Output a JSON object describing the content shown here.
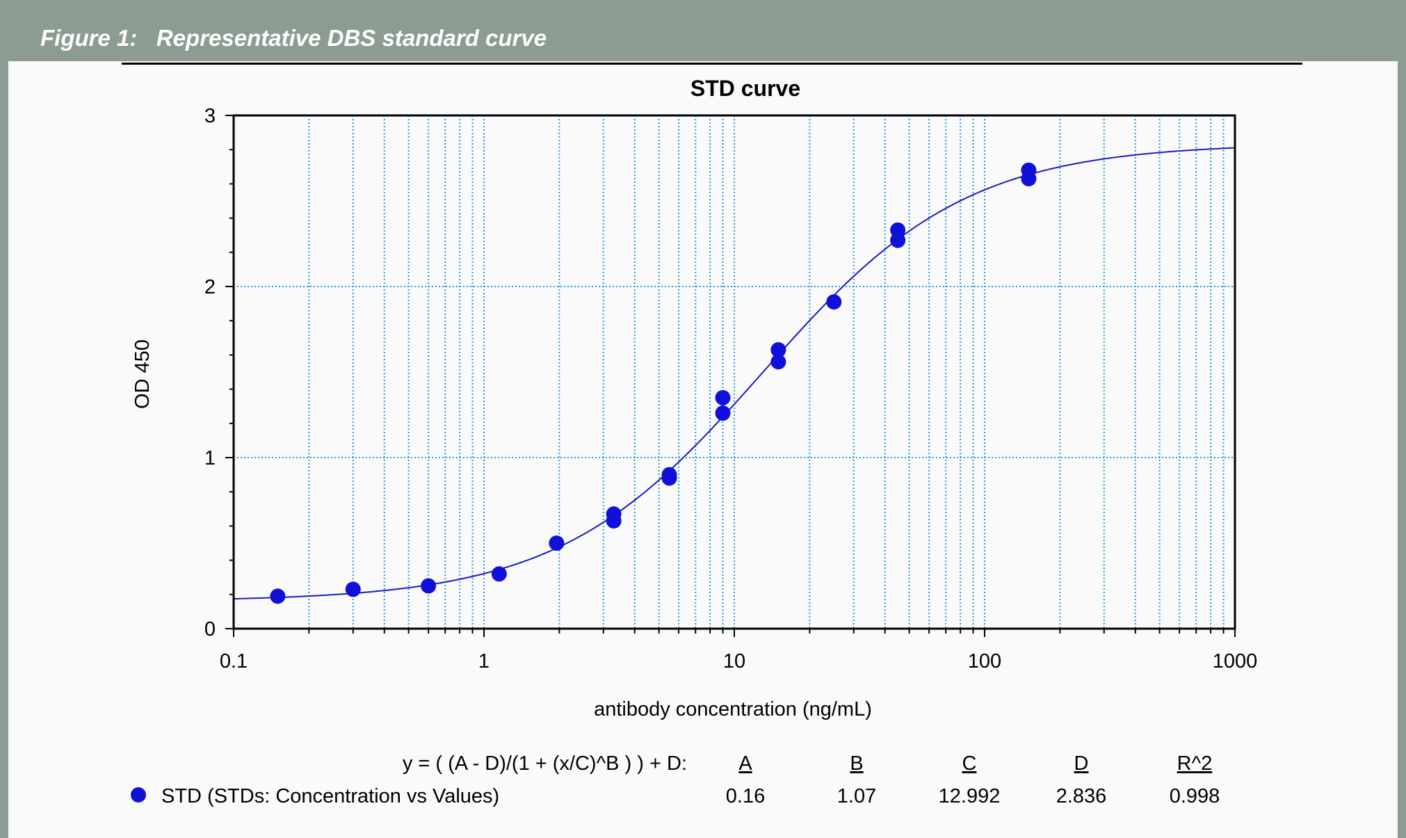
{
  "figure": {
    "caption": "Figure 1:   Representative DBS standard curve"
  },
  "colors": {
    "frame": "#8c9c92",
    "panel": "#fafafa",
    "grid": "#1aa0d8",
    "series": "#1010d8",
    "curve": "#1a1ac0"
  },
  "chart_data": {
    "type": "scatter",
    "title": "STD curve",
    "xlabel": "antibody concentration (ng/mL)",
    "ylabel": "OD 450",
    "x_scale": "log",
    "xlim": [
      0.1,
      1000
    ],
    "ylim": [
      0,
      3
    ],
    "x_ticks": [
      {
        "value": 0.1,
        "label": "0.1"
      },
      {
        "value": 1,
        "label": "1"
      },
      {
        "value": 10,
        "label": "10"
      },
      {
        "value": 100,
        "label": "100"
      },
      {
        "value": 1000,
        "label": "1000"
      }
    ],
    "y_ticks": [
      {
        "value": 0,
        "label": "0"
      },
      {
        "value": 1,
        "label": "1"
      },
      {
        "value": 2,
        "label": "2"
      },
      {
        "value": 3,
        "label": "3"
      }
    ],
    "grid": true,
    "series": [
      {
        "name": "STD (STDs: Concentration vs Values)",
        "points": [
          {
            "x": 0.15,
            "y": 0.19
          },
          {
            "x": 0.3,
            "y": 0.23
          },
          {
            "x": 0.6,
            "y": 0.25
          },
          {
            "x": 1.15,
            "y": 0.32
          },
          {
            "x": 1.95,
            "y": 0.5
          },
          {
            "x": 3.3,
            "y": 0.63
          },
          {
            "x": 3.3,
            "y": 0.67
          },
          {
            "x": 5.5,
            "y": 0.88
          },
          {
            "x": 5.5,
            "y": 0.9
          },
          {
            "x": 9.0,
            "y": 1.26
          },
          {
            "x": 9.0,
            "y": 1.35
          },
          {
            "x": 15,
            "y": 1.56
          },
          {
            "x": 15,
            "y": 1.63
          },
          {
            "x": 25,
            "y": 1.91
          },
          {
            "x": 45,
            "y": 2.27
          },
          {
            "x": 45,
            "y": 2.33
          },
          {
            "x": 150,
            "y": 2.63
          },
          {
            "x": 150,
            "y": 2.68
          }
        ]
      }
    ],
    "fit": {
      "equation": "y = ( (A - D)/(1 + (x/C)^B ) ) + D:",
      "params": [
        {
          "name": "A",
          "value": 0.16,
          "text": "0.16"
        },
        {
          "name": "B",
          "value": 1.07,
          "text": "1.07"
        },
        {
          "name": "C",
          "value": 12.992,
          "text": "12.992"
        },
        {
          "name": "D",
          "value": 2.836,
          "text": "2.836"
        },
        {
          "name": "R^2",
          "value": 0.998,
          "text": "0.998"
        }
      ]
    },
    "legend_position": "bottom"
  }
}
